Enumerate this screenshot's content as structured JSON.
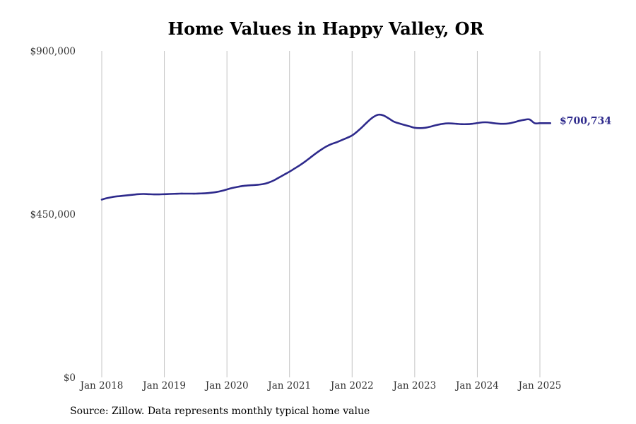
{
  "chart_data": {
    "type": "line",
    "title": "Home Values in Happy Valley, OR",
    "xlabel": "",
    "ylabel": "",
    "ylim": [
      0,
      900000
    ],
    "y_ticks": [
      {
        "value": 0,
        "label": "$0"
      },
      {
        "value": 450000,
        "label": "$450,000"
      },
      {
        "value": 900000,
        "label": "$900,000"
      }
    ],
    "x_range": [
      "2018-01",
      "2025-03"
    ],
    "x_ticks": [
      {
        "date": "2018-01",
        "label": "Jan 2018"
      },
      {
        "date": "2019-01",
        "label": "Jan 2019"
      },
      {
        "date": "2020-01",
        "label": "Jan 2020"
      },
      {
        "date": "2021-01",
        "label": "Jan 2021"
      },
      {
        "date": "2022-01",
        "label": "Jan 2022"
      },
      {
        "date": "2023-01",
        "label": "Jan 2023"
      },
      {
        "date": "2024-01",
        "label": "Jan 2024"
      },
      {
        "date": "2025-01",
        "label": "Jan 2025"
      }
    ],
    "grid": {
      "vertical": true,
      "horizontal": false
    },
    "legend": "none",
    "series": [
      {
        "color": "#2e2a8c",
        "x": [
          "2018-01",
          "2018-02",
          "2018-03",
          "2018-04",
          "2018-05",
          "2018-06",
          "2018-07",
          "2018-08",
          "2018-09",
          "2018-10",
          "2018-11",
          "2018-12",
          "2019-01",
          "2019-02",
          "2019-03",
          "2019-04",
          "2019-05",
          "2019-06",
          "2019-07",
          "2019-08",
          "2019-09",
          "2019-10",
          "2019-11",
          "2019-12",
          "2020-01",
          "2020-02",
          "2020-03",
          "2020-04",
          "2020-05",
          "2020-06",
          "2020-07",
          "2020-08",
          "2020-09",
          "2020-10",
          "2020-11",
          "2020-12",
          "2021-01",
          "2021-02",
          "2021-03",
          "2021-04",
          "2021-05",
          "2021-06",
          "2021-07",
          "2021-08",
          "2021-09",
          "2021-10",
          "2021-11",
          "2021-12",
          "2022-01",
          "2022-02",
          "2022-03",
          "2022-04",
          "2022-05",
          "2022-06",
          "2022-07",
          "2022-08",
          "2022-09",
          "2022-10",
          "2022-11",
          "2022-12",
          "2023-01",
          "2023-02",
          "2023-03",
          "2023-04",
          "2023-05",
          "2023-06",
          "2023-07",
          "2023-08",
          "2023-09",
          "2023-10",
          "2023-11",
          "2023-12",
          "2024-01",
          "2024-02",
          "2024-03",
          "2024-04",
          "2024-05",
          "2024-06",
          "2024-07",
          "2024-08",
          "2024-09",
          "2024-10",
          "2024-11",
          "2024-12",
          "2025-01",
          "2025-02",
          "2025-03"
        ],
        "values": [
          490000,
          494000,
          497000,
          499000,
          500500,
          502000,
          503500,
          505000,
          505500,
          505000,
          504500,
          504500,
          505000,
          505500,
          506000,
          506500,
          506500,
          506500,
          506500,
          507000,
          507500,
          509000,
          511000,
          514000,
          518000,
          522000,
          525000,
          527500,
          529000,
          530000,
          531000,
          533000,
          537000,
          543000,
          551000,
          559000,
          567000,
          576000,
          585000,
          595000,
          606000,
          617000,
          627000,
          636000,
          643000,
          648000,
          654000,
          660000,
          667000,
          678000,
          691000,
          705000,
          717000,
          724000,
          722000,
          714000,
          705000,
          700000,
          696000,
          692000,
          688000,
          687000,
          688000,
          691000,
          695000,
          698000,
          700000,
          700000,
          699000,
          698000,
          698000,
          699000,
          701000,
          703000,
          703000,
          701000,
          699500,
          699000,
          700000,
          703000,
          707000,
          710000,
          711000,
          700734,
          700734,
          700734,
          700734
        ],
        "end_label": "$700,734"
      }
    ]
  },
  "source": "Source: Zillow. Data represents monthly typical home value"
}
